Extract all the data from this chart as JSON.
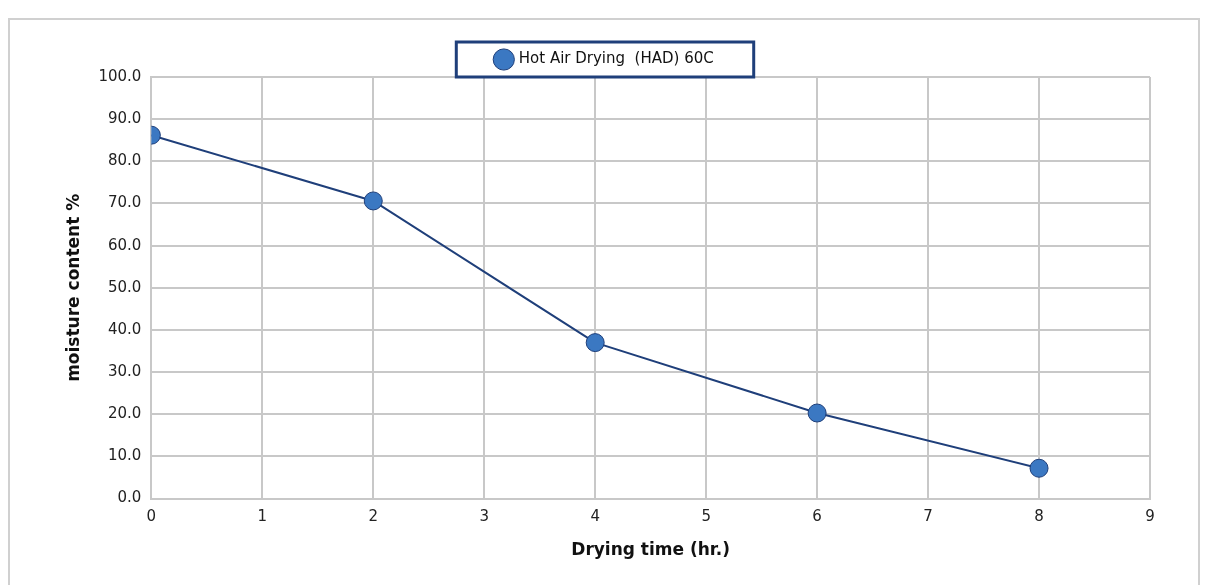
{
  "chart_data": {
    "type": "line",
    "xlabel": "Drying time (hr.)",
    "ylabel": "moisture content %",
    "x": [
      0,
      2,
      4,
      6,
      8
    ],
    "series": [
      {
        "name": "Hot Air Drying  (HAD) 60C",
        "color": "#1f3f7a",
        "values": [
          86.2,
          70.6,
          37.0,
          20.3,
          7.2
        ]
      }
    ],
    "xlim": [
      0,
      9
    ],
    "xticks": [
      0,
      1,
      2,
      3,
      4,
      5,
      6,
      7,
      8,
      9
    ],
    "ylim": [
      0,
      100
    ],
    "yticks": [
      {
        "value": 0,
        "label": "0.0"
      },
      {
        "value": 10,
        "label": "10.0"
      },
      {
        "value": 20,
        "label": "20.0"
      },
      {
        "value": 30,
        "label": "30.0"
      },
      {
        "value": 40,
        "label": "40.0"
      },
      {
        "value": 50,
        "label": "50.0"
      },
      {
        "value": 60,
        "label": "60.0"
      },
      {
        "value": 70,
        "label": "70.0"
      },
      {
        "value": 80,
        "label": "80.0"
      },
      {
        "value": 90,
        "label": "90.0"
      },
      {
        "value": 100,
        "label": "100.0"
      }
    ],
    "grid": true,
    "legend": "top",
    "marker": "circle",
    "line_style": "solid"
  }
}
